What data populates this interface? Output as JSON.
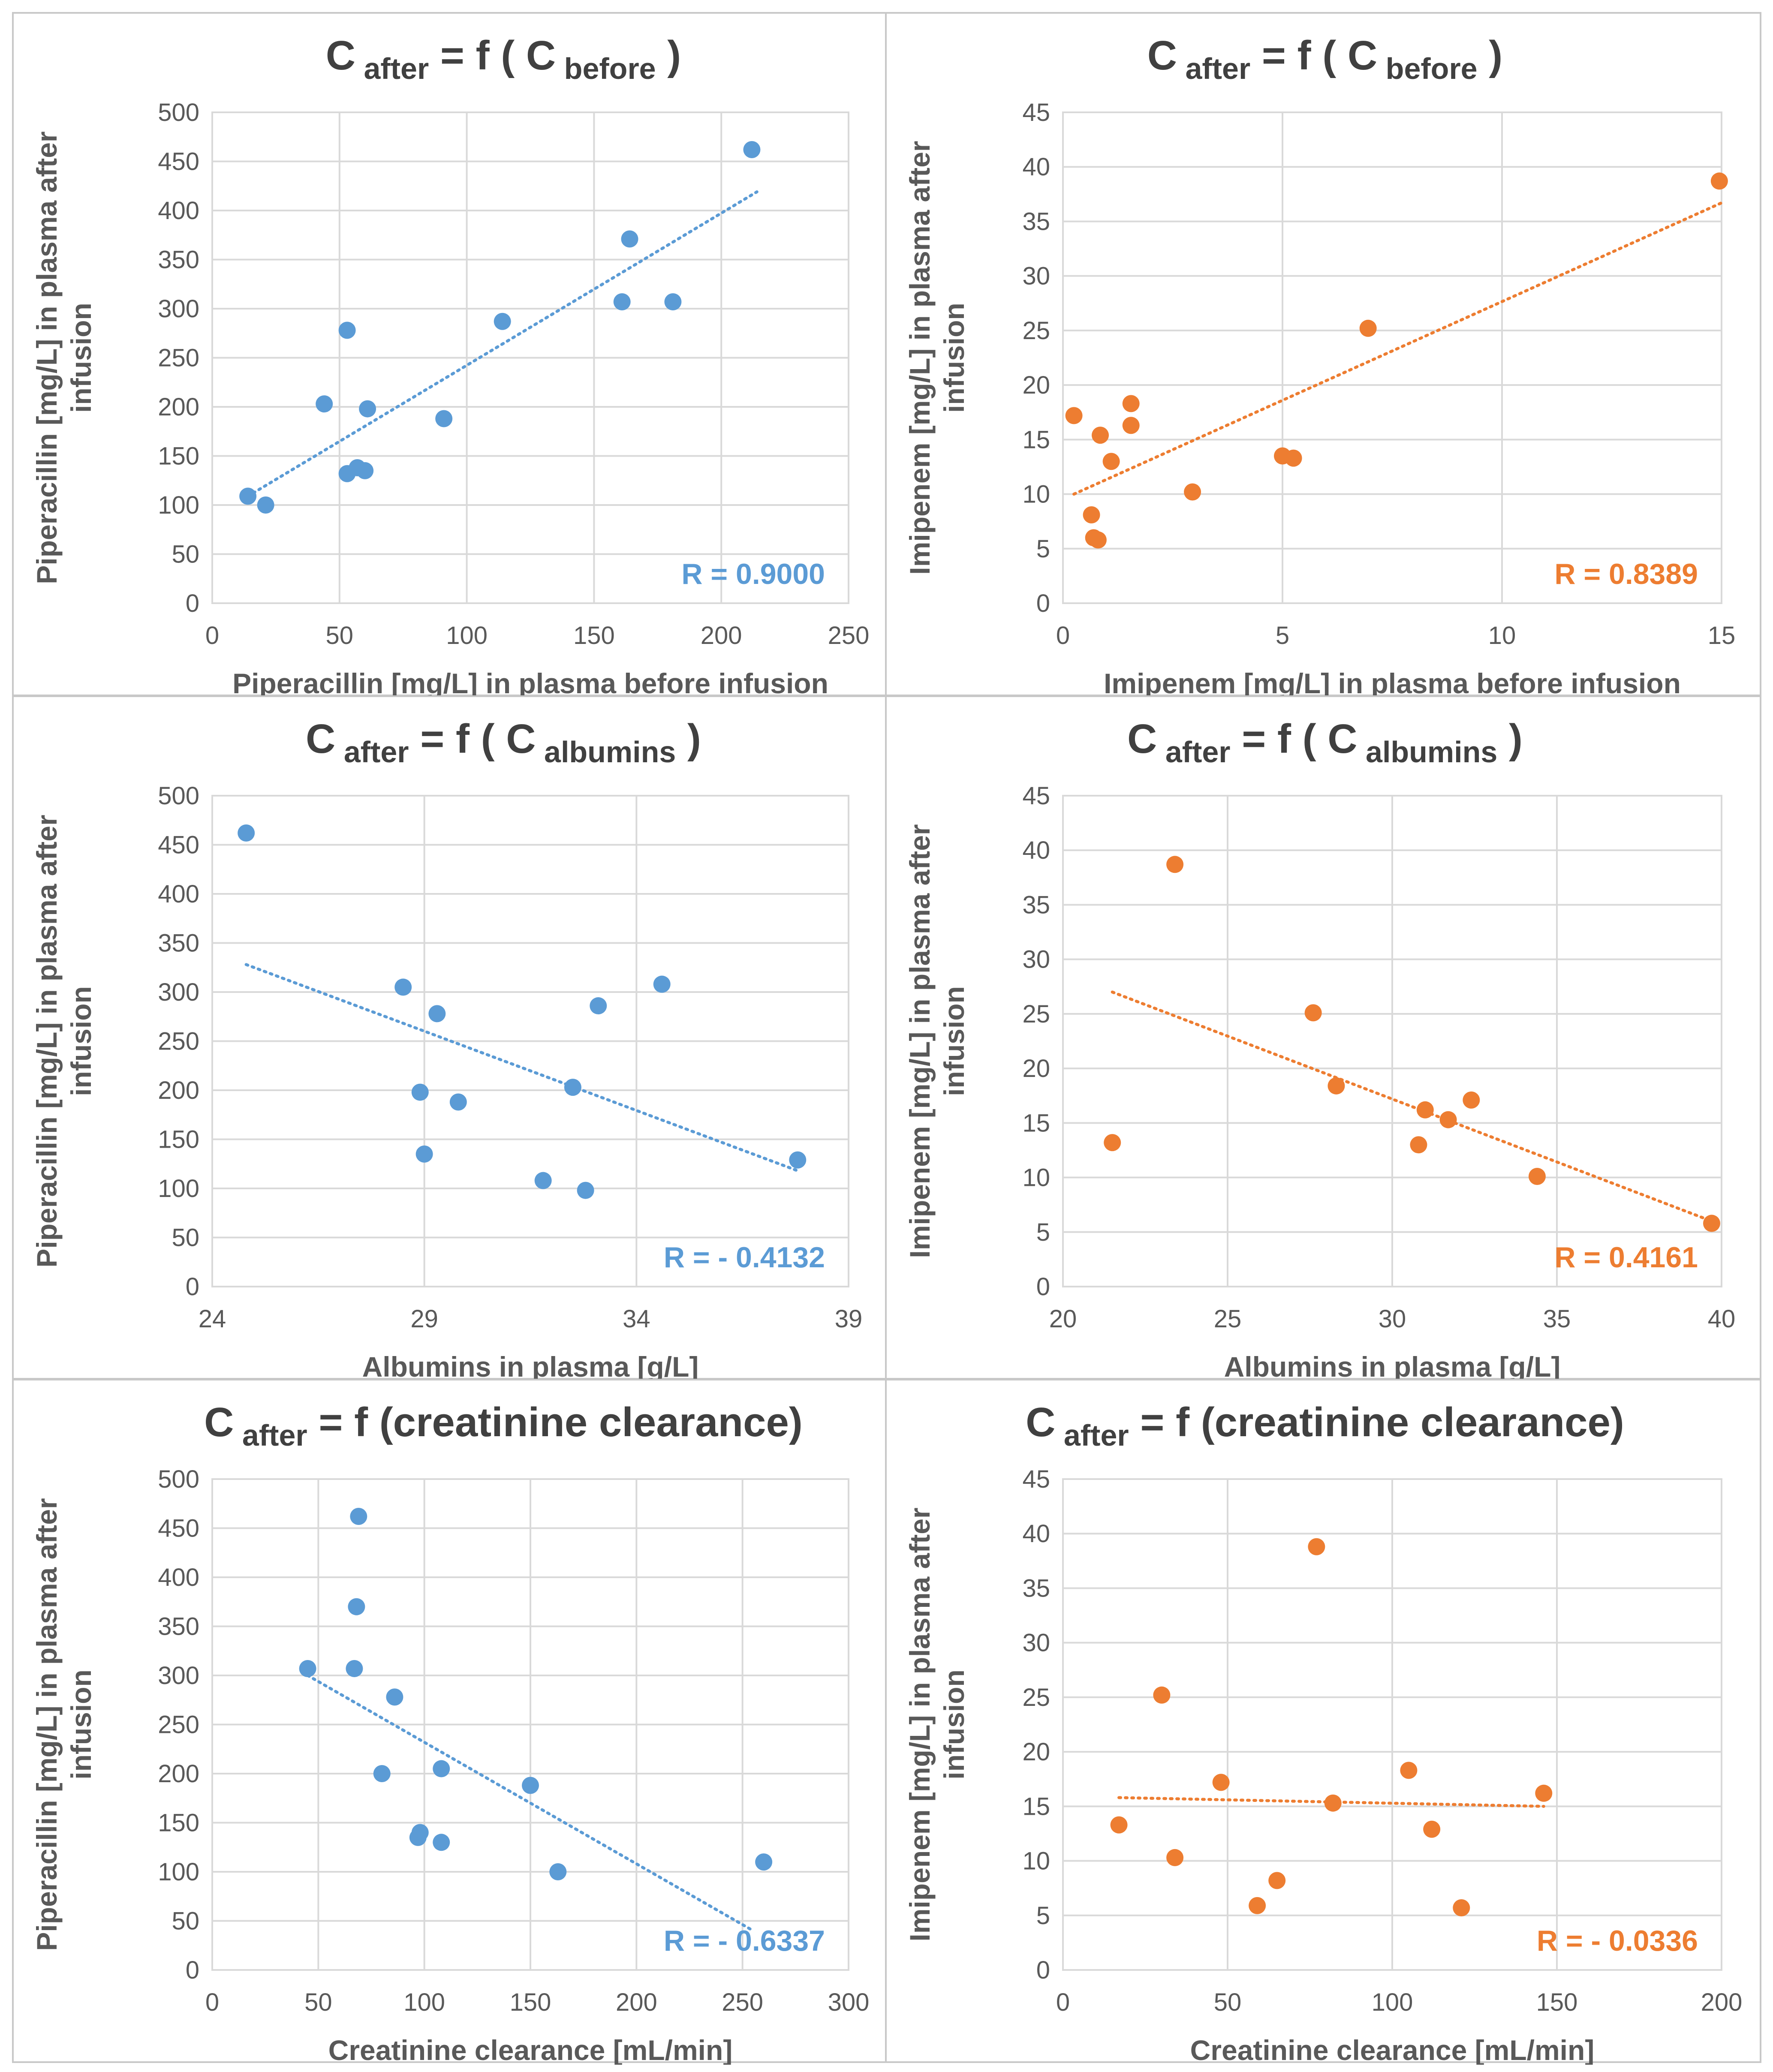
{
  "chart_data": [
    {
      "type": "scatter",
      "drug": "Piperacillin",
      "color": "#5b9bd5",
      "title": {
        "main": "C",
        "sub1": "after",
        "mid": "= f ( C",
        "sub2": "before",
        "end": ")"
      },
      "xlabel": "Piperacillin [mg/L] in plasma before infusion",
      "ylabel": [
        "Piperacillin [mg/L] in plasma after",
        "infusion"
      ],
      "xlim": [
        0,
        250
      ],
      "ylim": [
        0,
        500
      ],
      "xticks": [
        0,
        50,
        100,
        150,
        200,
        250
      ],
      "yticks": [
        0,
        50,
        100,
        150,
        200,
        250,
        300,
        350,
        400,
        450,
        500
      ],
      "grid": true,
      "points": [
        [
          14,
          109
        ],
        [
          21,
          100
        ],
        [
          44,
          203
        ],
        [
          53,
          278
        ],
        [
          53,
          132
        ],
        [
          57,
          138
        ],
        [
          60,
          135
        ],
        [
          61,
          198
        ],
        [
          91,
          188
        ],
        [
          114,
          287
        ],
        [
          161,
          307
        ],
        [
          164,
          371
        ],
        [
          181,
          307
        ],
        [
          212,
          462
        ]
      ],
      "trendline": [
        [
          14,
          109
        ],
        [
          214,
          419
        ]
      ],
      "r_label": "R = 0.9000"
    },
    {
      "type": "scatter",
      "drug": "Imipenem",
      "color": "#ed7d31",
      "title": {
        "main": "C",
        "sub1": "after",
        "mid": "= f ( C",
        "sub2": "before",
        "end": ")"
      },
      "xlabel": "Imipenem [mg/L] in plasma before infusion",
      "ylabel": [
        "Imipenem [mg/L] in plasma after",
        "infusion"
      ],
      "xlim": [
        0,
        15
      ],
      "ylim": [
        0,
        45
      ],
      "xticks": [
        0,
        5,
        10,
        15
      ],
      "yticks": [
        0,
        5,
        10,
        15,
        20,
        25,
        30,
        35,
        40,
        45
      ],
      "grid": true,
      "points": [
        [
          0.25,
          17.2
        ],
        [
          0.65,
          8.1
        ],
        [
          0.7,
          6.0
        ],
        [
          0.8,
          5.8
        ],
        [
          0.85,
          15.4
        ],
        [
          1.1,
          13.0
        ],
        [
          1.55,
          18.3
        ],
        [
          1.55,
          16.3
        ],
        [
          2.95,
          10.2
        ],
        [
          5.0,
          13.5
        ],
        [
          5.25,
          13.3
        ],
        [
          6.95,
          25.2
        ],
        [
          14.95,
          38.7
        ]
      ],
      "trendline": [
        [
          0.25,
          10.0
        ],
        [
          15.0,
          36.7
        ]
      ],
      "r_label": "R =  0.8389"
    },
    {
      "type": "scatter",
      "drug": "Piperacillin",
      "color": "#5b9bd5",
      "title": {
        "main": "C",
        "sub1": "after",
        "mid": "= f ( C",
        "sub2": "albumins",
        "end": ")"
      },
      "xlabel": "Albumins in plasma [g/L]",
      "ylabel": [
        "Piperacillin [mg/L] in plasma after",
        "infusion"
      ],
      "xlim": [
        24,
        39
      ],
      "ylim": [
        0,
        500
      ],
      "xticks": [
        24,
        29,
        34,
        39
      ],
      "yticks": [
        0,
        50,
        100,
        150,
        200,
        250,
        300,
        350,
        400,
        450,
        500
      ],
      "grid": true,
      "points": [
        [
          24.8,
          462
        ],
        [
          28.5,
          305
        ],
        [
          28.9,
          198
        ],
        [
          29.0,
          135
        ],
        [
          29.3,
          278
        ],
        [
          29.8,
          188
        ],
        [
          31.8,
          108
        ],
        [
          32.5,
          203
        ],
        [
          32.8,
          98
        ],
        [
          33.1,
          286
        ],
        [
          34.6,
          308
        ],
        [
          37.8,
          129
        ]
      ],
      "trendline": [
        [
          24.8,
          328
        ],
        [
          37.8,
          118
        ]
      ],
      "r_label": "R = - 0.4132"
    },
    {
      "type": "scatter",
      "drug": "Imipenem",
      "color": "#ed7d31",
      "title": {
        "main": "C",
        "sub1": "after",
        "mid": "= f ( C",
        "sub2": "albumins",
        "end": ")"
      },
      "xlabel": "Albumins in plasma [g/L]",
      "ylabel": [
        "Imipenem [mg/L] in plasma after",
        "infusion"
      ],
      "xlim": [
        20,
        40
      ],
      "ylim": [
        0,
        45
      ],
      "xticks": [
        20,
        25,
        30,
        35,
        40
      ],
      "yticks": [
        0,
        5,
        10,
        15,
        20,
        25,
        30,
        35,
        40,
        45
      ],
      "grid": true,
      "points": [
        [
          21.5,
          13.2
        ],
        [
          23.4,
          38.7
        ],
        [
          27.6,
          25.1
        ],
        [
          28.3,
          18.4
        ],
        [
          30.8,
          13.0
        ],
        [
          31.0,
          16.2
        ],
        [
          31.7,
          15.3
        ],
        [
          32.4,
          17.1
        ],
        [
          34.4,
          10.1
        ],
        [
          39.7,
          5.8
        ]
      ],
      "trendline": [
        [
          21.5,
          27.0
        ],
        [
          39.7,
          6.0
        ]
      ],
      "r_label": "R = 0.4161"
    },
    {
      "type": "scatter",
      "drug": "Piperacillin",
      "color": "#5b9bd5",
      "title": {
        "main": "C",
        "sub1": "after",
        "mid": "= f (creatinine clearance)",
        "sub2": "",
        "end": ""
      },
      "xlabel": "Creatinine clearance [mL/min]",
      "ylabel": [
        "Piperacillin [mg/L] in plasma after",
        "infusion"
      ],
      "xlim": [
        0,
        300
      ],
      "ylim": [
        0,
        500
      ],
      "xticks": [
        0,
        50,
        100,
        150,
        200,
        250,
        300
      ],
      "yticks": [
        0,
        50,
        100,
        150,
        200,
        250,
        300,
        350,
        400,
        450,
        500
      ],
      "grid": true,
      "points": [
        [
          45,
          307
        ],
        [
          67,
          307
        ],
        [
          68,
          370
        ],
        [
          69,
          462
        ],
        [
          86,
          278
        ],
        [
          80,
          200
        ],
        [
          97,
          135
        ],
        [
          98,
          140
        ],
        [
          108,
          130
        ],
        [
          108,
          205
        ],
        [
          150,
          188
        ],
        [
          163,
          100
        ],
        [
          260,
          110
        ]
      ],
      "trendline": [
        [
          45,
          300
        ],
        [
          255,
          40
        ]
      ],
      "r_label": "R = - 0.6337"
    },
    {
      "type": "scatter",
      "drug": "Imipenem",
      "color": "#ed7d31",
      "title": {
        "main": "C",
        "sub1": "after",
        "mid": "= f (creatinine clearance)",
        "sub2": "",
        "end": ""
      },
      "xlabel": "Creatinine clearance [mL/min]",
      "ylabel": [
        "Imipenem  [mg/L] in plasma after",
        "infusion"
      ],
      "xlim": [
        0,
        200
      ],
      "ylim": [
        0,
        45
      ],
      "xticks": [
        0,
        50,
        100,
        150,
        200
      ],
      "yticks": [
        0,
        5,
        10,
        15,
        20,
        25,
        30,
        35,
        40,
        45
      ],
      "grid": true,
      "points": [
        [
          17,
          13.3
        ],
        [
          30,
          25.2
        ],
        [
          34,
          10.3
        ],
        [
          48,
          17.2
        ],
        [
          59,
          5.9
        ],
        [
          65,
          8.2
        ],
        [
          77,
          38.8
        ],
        [
          82,
          15.3
        ],
        [
          105,
          18.3
        ],
        [
          112,
          12.9
        ],
        [
          121,
          5.7
        ],
        [
          146,
          16.2
        ]
      ],
      "trendline": [
        [
          17,
          15.8
        ],
        [
          146,
          15.0
        ]
      ],
      "r_label": "R = - 0.0336"
    }
  ]
}
